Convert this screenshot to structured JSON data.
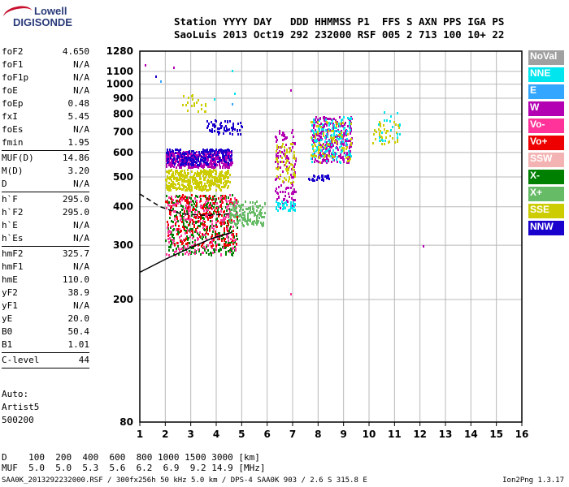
{
  "logo": {
    "line1": "Lowell",
    "line2": "DIGISONDE"
  },
  "header": {
    "line1": "Station YYYY DAY   DDD HHMMSS P1  FFS S AXN PPS IGA PS",
    "line2": "SaoLuis 2013 Oct19 292 232000 RSF 005 2 713 100 10+ 22"
  },
  "params": [
    {
      "key": "foF2",
      "value": "4.650"
    },
    {
      "key": "foF1",
      "value": "N/A"
    },
    {
      "key": "foF1p",
      "value": "N/A"
    },
    {
      "key": "foE",
      "value": "N/A"
    },
    {
      "key": "foEp",
      "value": "0.48"
    },
    {
      "key": "fxI",
      "value": "5.45"
    },
    {
      "key": "foEs",
      "value": "N/A"
    },
    {
      "key": "fmin",
      "value": "1.95"
    },
    {
      "key": "MUF(D)",
      "value": "14.86"
    },
    {
      "key": "M(D)",
      "value": "3.20"
    },
    {
      "key": "D",
      "value": "N/A"
    },
    {
      "key": "h`F",
      "value": "295.0"
    },
    {
      "key": "h`F2",
      "value": "295.0"
    },
    {
      "key": "h`E",
      "value": "N/A"
    },
    {
      "key": "h`Es",
      "value": "N/A"
    },
    {
      "key": "hmF2",
      "value": "325.7"
    },
    {
      "key": "hmF1",
      "value": "N/A"
    },
    {
      "key": "hmE",
      "value": "110.0"
    },
    {
      "key": "yF2",
      "value": "38.9"
    },
    {
      "key": "yF1",
      "value": "N/A"
    },
    {
      "key": "yE",
      "value": "20.0"
    },
    {
      "key": "B0",
      "value": "50.4"
    },
    {
      "key": "B1",
      "value": "1.01"
    },
    {
      "key": "C-level",
      "value": "44"
    }
  ],
  "autoscale": {
    "line1": "Auto:",
    "line2": "Artist5",
    "line3": "500200"
  },
  "legend": [
    {
      "label": "NoVal",
      "color": "#a0a0a0"
    },
    {
      "label": "NNE",
      "color": "#00e5ee"
    },
    {
      "label": "E",
      "color": "#33a6ff"
    },
    {
      "label": "W",
      "color": "#b300b3"
    },
    {
      "label": "Vo-",
      "color": "#ff3399"
    },
    {
      "label": "Vo+",
      "color": "#ee0000"
    },
    {
      "label": "SSW",
      "color": "#f4b3b3"
    },
    {
      "label": "X-",
      "color": "#008000"
    },
    {
      "label": "X+",
      "color": "#66bb66"
    },
    {
      "label": "SSE",
      "color": "#cccc00"
    },
    {
      "label": "NNW",
      "color": "#1a00cc"
    }
  ],
  "footer": {
    "d_row": "D    100  200  400  600  800 1000 1500 3000 [km]",
    "muf_row": "MUF  5.0  5.0  5.3  5.6  6.2  6.9  9.2 14.9 [MHz]"
  },
  "credit": "SAA0K_2013292232000.RSF / 300fx256h 50 kHz 5.0 km / DPS-4 SAA0K 903 / 2.6 S 315.8 E",
  "version": "Ion2Png 1.3.17",
  "chart_data": {
    "type": "scatter",
    "xlim": [
      1,
      16
    ],
    "ylim": [
      80,
      1280
    ],
    "xticks": [
      "1",
      "2",
      "3",
      "4",
      "5",
      "6",
      "7",
      "8",
      "9",
      "10",
      "11",
      "12",
      "13",
      "14",
      "15",
      "16"
    ],
    "yticks": [
      80,
      200,
      300,
      400,
      500,
      600,
      700,
      800,
      900,
      1000,
      1100,
      1280
    ],
    "y_scale": "log",
    "grid": true,
    "clusters": [
      {
        "color_idx": 3,
        "x": [
          2.0,
          4.6
        ],
        "y": [
          540,
          610
        ],
        "n": 420
      },
      {
        "color_idx": 10,
        "x": [
          2.0,
          4.6
        ],
        "y": [
          550,
          620
        ],
        "n": 200
      },
      {
        "color_idx": 9,
        "x": [
          2.0,
          4.5
        ],
        "y": [
          455,
          530
        ],
        "n": 420
      },
      {
        "color_idx": 7,
        "x": [
          2.0,
          4.8
        ],
        "y": [
          280,
          440
        ],
        "n": 380
      },
      {
        "color_idx": 4,
        "x": [
          2.0,
          4.8
        ],
        "y": [
          280,
          440
        ],
        "n": 260
      },
      {
        "color_idx": 5,
        "x": [
          2.0,
          4.8
        ],
        "y": [
          300,
          440
        ],
        "n": 200
      },
      {
        "color_idx": 8,
        "x": [
          4.5,
          5.9
        ],
        "y": [
          350,
          420
        ],
        "n": 150
      },
      {
        "color_idx": 3,
        "x": [
          6.3,
          7.1
        ],
        "y": [
          400,
          720
        ],
        "n": 120
      },
      {
        "color_idx": 9,
        "x": [
          6.3,
          7.1
        ],
        "y": [
          480,
          650
        ],
        "n": 60
      },
      {
        "color_idx": 1,
        "x": [
          6.3,
          7.1
        ],
        "y": [
          390,
          420
        ],
        "n": 40
      },
      {
        "color_idx": 3,
        "x": [
          7.7,
          9.3
        ],
        "y": [
          560,
          790
        ],
        "n": 300
      },
      {
        "color_idx": 1,
        "x": [
          7.7,
          9.3
        ],
        "y": [
          560,
          790
        ],
        "n": 140
      },
      {
        "color_idx": 9,
        "x": [
          7.7,
          9.3
        ],
        "y": [
          560,
          760
        ],
        "n": 80
      },
      {
        "color_idx": 10,
        "x": [
          7.6,
          8.4
        ],
        "y": [
          490,
          510
        ],
        "n": 30
      },
      {
        "color_idx": 9,
        "x": [
          10.1,
          11.2
        ],
        "y": [
          640,
          760
        ],
        "n": 40
      },
      {
        "color_idx": 1,
        "x": [
          10.3,
          11.2
        ],
        "y": [
          660,
          830
        ],
        "n": 20
      },
      {
        "color_idx": 9,
        "x": [
          2.6,
          3.6
        ],
        "y": [
          820,
          930
        ],
        "n": 22
      },
      {
        "color_idx": 10,
        "x": [
          3.6,
          5.0
        ],
        "y": [
          690,
          770
        ],
        "n": 60
      }
    ],
    "trace_solid": {
      "x": [
        1.0,
        2.0,
        3.0,
        3.8,
        4.6
      ],
      "y": [
        245,
        270,
        295,
        315,
        330
      ]
    },
    "trace_dashed": {
      "x": [
        1.0,
        1.8,
        2.6,
        3.6,
        4.6
      ],
      "y": [
        440,
        400,
        380,
        375,
        380
      ]
    }
  }
}
